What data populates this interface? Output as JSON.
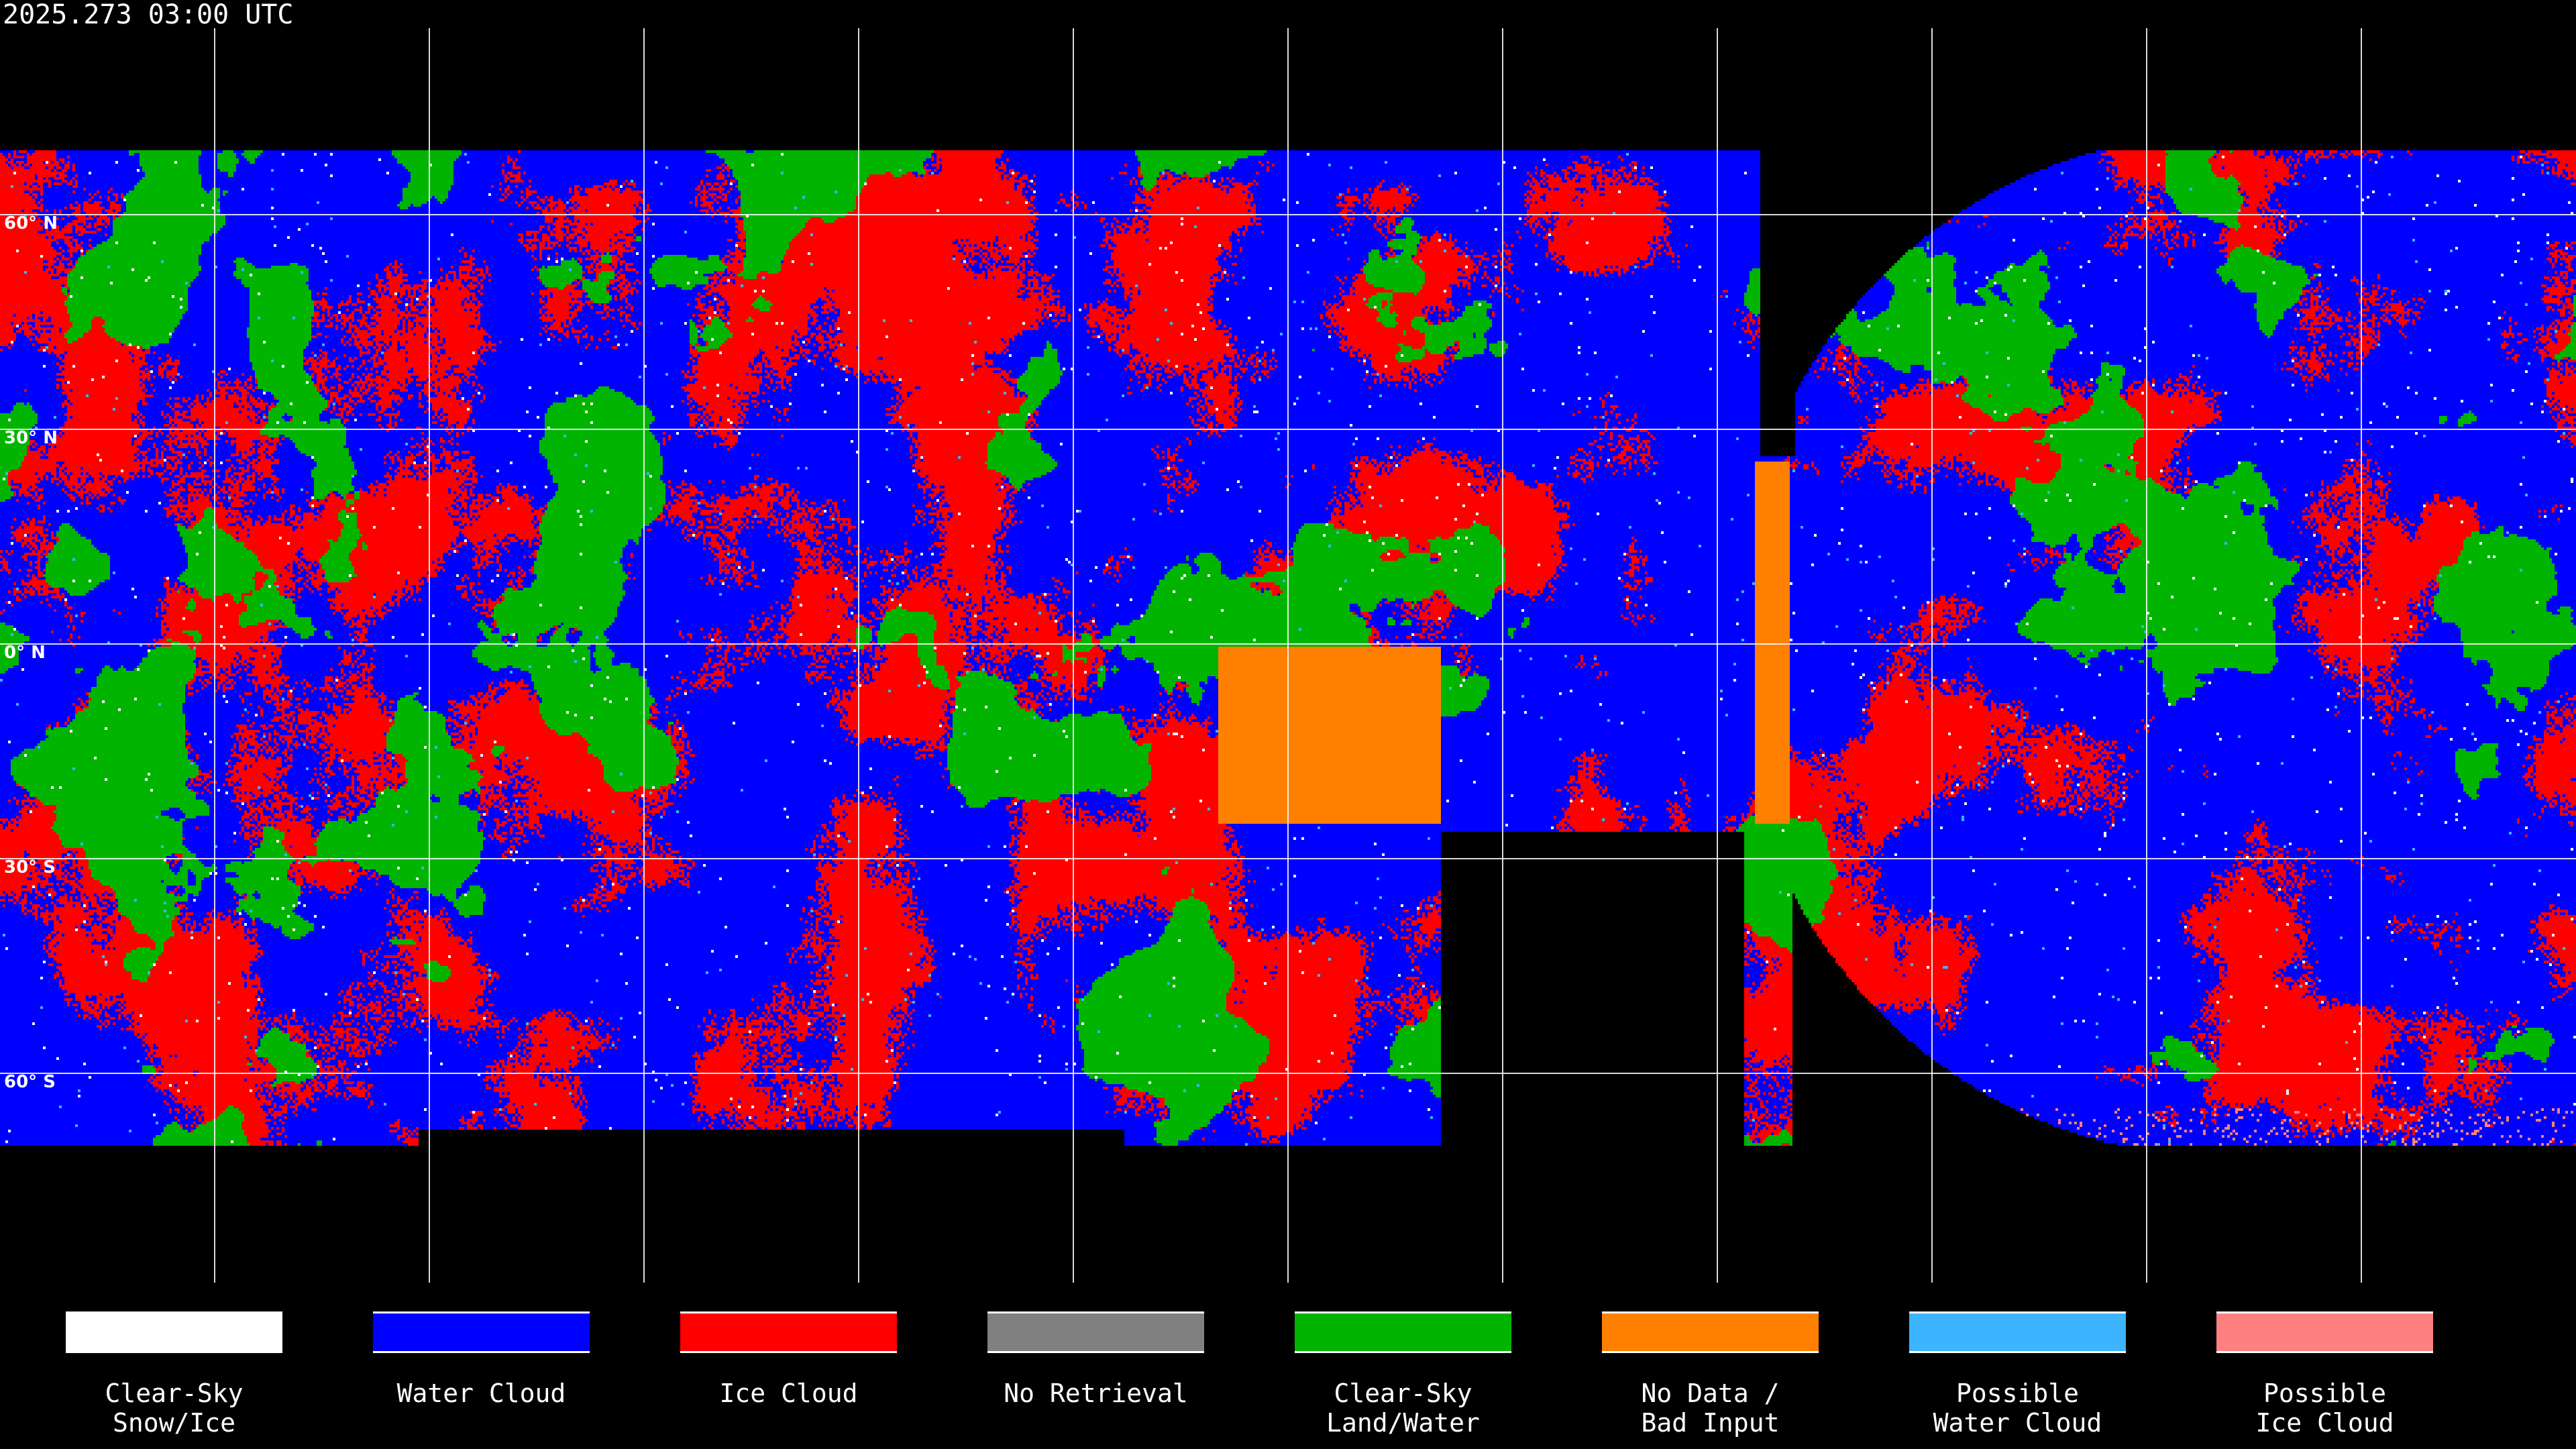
{
  "title": "2025.273 03:00 UTC",
  "latitude_labels": [
    "60° N",
    "30° N",
    "0° N",
    "30° S",
    "60° S"
  ],
  "legend": [
    {
      "label": "Clear-Sky\nSnow/Ice",
      "color": "#ffffff"
    },
    {
      "label": "Water Cloud",
      "color": "#0000ff"
    },
    {
      "label": "Ice Cloud",
      "color": "#ff0000"
    },
    {
      "label": "No Retrieval",
      "color": "#808080"
    },
    {
      "label": "Clear-Sky\nLand/Water",
      "color": "#00b400"
    },
    {
      "label": "No Data /\nBad Input",
      "color": "#ff8000"
    },
    {
      "label": "Possible\nWater Cloud",
      "color": "#3cb4ff"
    },
    {
      "label": "Possible\nIce Cloud",
      "color": "#ff8080"
    }
  ]
}
